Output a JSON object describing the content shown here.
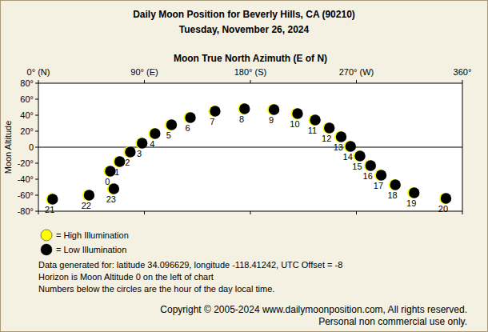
{
  "chart_data": {
    "type": "scatter",
    "title": "Daily Moon Position for Beverly Hills, CA (90210)",
    "subtitle": "Tuesday, November 26, 2024",
    "x_label": "Moon True North Azimuth (E of N)",
    "y_label": "Moon Altitude",
    "xlim": [
      0,
      360
    ],
    "xticks": [
      {
        "value": 0,
        "label": "0° (N)"
      },
      {
        "value": 90,
        "label": "90° (E)"
      },
      {
        "value": 180,
        "label": "180° (S)"
      },
      {
        "value": 270,
        "label": "270° (W)"
      },
      {
        "value": 360,
        "label": "360°"
      }
    ],
    "ylim": [
      -80,
      80
    ],
    "yticks": [
      {
        "value": 80,
        "label": "80°"
      },
      {
        "value": 60,
        "label": "60°"
      },
      {
        "value": 40,
        "label": "40°"
      },
      {
        "value": 20,
        "label": "20°"
      },
      0,
      {
        "value": -20,
        "label": "-20°"
      },
      {
        "value": -40,
        "label": "-40°"
      },
      {
        "value": -60,
        "label": "-60°"
      },
      {
        "value": -80,
        "label": "-80°"
      }
    ],
    "horizon_altitude": 0,
    "grid": false,
    "hours": [
      0,
      1,
      2,
      3,
      4,
      5,
      6,
      7,
      8,
      9,
      10,
      11,
      12,
      13,
      14,
      15,
      16,
      17,
      18,
      19,
      20,
      21,
      22,
      23
    ],
    "x": [
      60,
      68,
      77,
      87,
      98,
      112,
      128,
      149,
      174,
      199,
      219,
      234,
      246,
      256,
      264,
      272,
      281,
      290,
      302,
      318,
      345,
      11,
      42,
      63
    ],
    "series": [
      {
        "color": "#000000",
        "marker": "circle",
        "values": [
          -30,
          -18,
          -6,
          5,
          17,
          28,
          37,
          45,
          48,
          47,
          42,
          34,
          24,
          13,
          1,
          -11,
          -23,
          -35,
          -47,
          -57,
          -64,
          -65,
          -60,
          -52
        ]
      }
    ],
    "legend_items": [
      {
        "label": "= High Illumination",
        "color": "#ffff00"
      },
      {
        "label": "= Low Illumination",
        "color": "#000000"
      }
    ],
    "notes": [
      "Data generated for: latitude 34.096629, longitude -118.41242, UTC Offset = -8",
      "Horizon is Moon Altitude 0 on the left of chart",
      "Numbers below the circles are the hour of the day local time."
    ],
    "copyright": [
      "Copyright © 2005-2024 www.dailymoonposition.com, All rights reserved.",
      "Personal non commercial use only."
    ]
  }
}
